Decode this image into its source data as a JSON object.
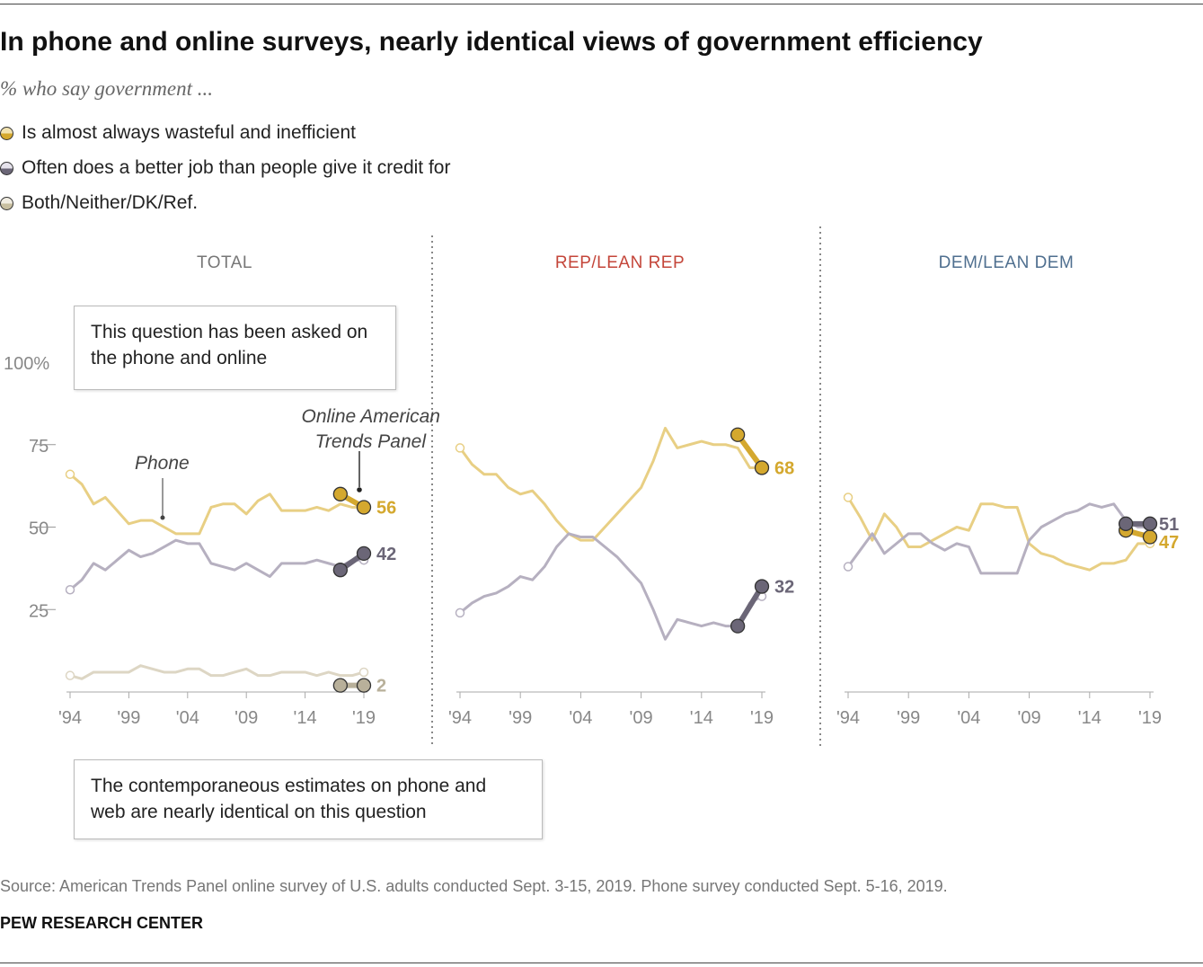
{
  "title": "In phone and online surveys, nearly identical views of government efficiency",
  "subtitle": "% who say government ...",
  "legend": [
    {
      "label": "Is almost always wasteful and inefficient",
      "color": "#d4a82e"
    },
    {
      "label": "Often does a better job than people give it credit for",
      "color": "#6b6677"
    },
    {
      "label": "Both/Neither/DK/Ref.",
      "color": "#c8bfa0"
    }
  ],
  "notes": {
    "top": "This question has been asked on the phone and online",
    "bottom": "The contemporaneous estimates on phone and web are nearly identical on this question"
  },
  "annotations": {
    "phone": "Phone",
    "online_line1": "Online American",
    "online_line2": "Trends Panel"
  },
  "source": "Source: American Trends Panel online survey of U.S. adults conducted Sept. 3-15, 2019. Phone survey conducted Sept. 5-16, 2019.",
  "brand": "PEW RESEARCH CENTER",
  "colors": {
    "wasteful_phone": "#e8cf84",
    "wasteful_online": "#d4a82e",
    "better_phone": "#b6b0c0",
    "better_online": "#6b6677",
    "both_phone": "#ddd6c4",
    "both_online": "#b8b09a",
    "rep": "#c4463a",
    "dem": "#4f6f8f",
    "total": "#777777"
  },
  "chart_data": [
    {
      "type": "line",
      "panel": "TOTAL",
      "ylim": [
        0,
        100
      ],
      "yticks": [
        "100%",
        "75",
        "50",
        "25"
      ],
      "xticks": [
        "'94",
        "'99",
        "'04",
        "'09",
        "'14",
        "'19"
      ],
      "xlim": [
        1994,
        2019
      ],
      "phone_series": [
        {
          "name": "Is almost always wasteful and inefficient",
          "key": "wasteful",
          "x": [
            1994,
            1995,
            1996,
            1997,
            1998,
            1999,
            2000,
            2001,
            2002,
            2003,
            2004,
            2005,
            2006,
            2007,
            2008,
            2009,
            2010,
            2011,
            2012,
            2013,
            2014,
            2015,
            2016,
            2017,
            2018,
            2019
          ],
          "y": [
            66,
            63,
            57,
            59,
            55,
            51,
            52,
            52,
            50,
            48,
            48,
            48,
            56,
            57,
            57,
            54,
            58,
            60,
            55,
            55,
            55,
            56,
            55,
            57,
            56,
            56
          ]
        },
        {
          "name": "Often does a better job than people give it credit for",
          "key": "better",
          "x": [
            1994,
            1995,
            1996,
            1997,
            1998,
            1999,
            2000,
            2001,
            2002,
            2003,
            2004,
            2005,
            2006,
            2007,
            2008,
            2009,
            2010,
            2011,
            2012,
            2013,
            2014,
            2015,
            2016,
            2017,
            2018,
            2019
          ],
          "y": [
            31,
            34,
            39,
            37,
            40,
            43,
            41,
            42,
            44,
            46,
            45,
            45,
            39,
            38,
            37,
            39,
            37,
            35,
            39,
            39,
            39,
            40,
            39,
            38,
            40,
            40
          ]
        },
        {
          "name": "Both/Neither/DK/Ref.",
          "key": "both",
          "x": [
            1994,
            1995,
            1996,
            1997,
            1998,
            1999,
            2000,
            2001,
            2002,
            2003,
            2004,
            2005,
            2006,
            2007,
            2008,
            2009,
            2010,
            2011,
            2012,
            2013,
            2014,
            2015,
            2016,
            2017,
            2018,
            2019
          ],
          "y": [
            5,
            4,
            6,
            6,
            6,
            6,
            8,
            7,
            6,
            6,
            7,
            7,
            5,
            5,
            6,
            7,
            5,
            5,
            6,
            6,
            6,
            5,
            6,
            5,
            5,
            6
          ]
        }
      ],
      "online_series": [
        {
          "key": "wasteful",
          "x": [
            2017,
            2019
          ],
          "y": [
            60,
            56
          ],
          "label": "56"
        },
        {
          "key": "better",
          "x": [
            2017,
            2019
          ],
          "y": [
            37,
            42
          ],
          "label": "42"
        },
        {
          "key": "both",
          "x": [
            2017,
            2019
          ],
          "y": [
            2,
            2
          ],
          "label": "2"
        }
      ]
    },
    {
      "type": "line",
      "panel": "REP/LEAN REP",
      "ylim": [
        0,
        100
      ],
      "xticks": [
        "'94",
        "'99",
        "'04",
        "'09",
        "'14",
        "'19"
      ],
      "xlim": [
        1994,
        2019
      ],
      "phone_series": [
        {
          "name": "Is almost always wasteful and inefficient",
          "key": "wasteful",
          "x": [
            1994,
            1995,
            1996,
            1997,
            1998,
            1999,
            2000,
            2001,
            2002,
            2003,
            2004,
            2005,
            2006,
            2007,
            2008,
            2009,
            2010,
            2011,
            2012,
            2013,
            2014,
            2015,
            2016,
            2017,
            2018,
            2019
          ],
          "y": [
            74,
            69,
            66,
            66,
            62,
            60,
            61,
            57,
            52,
            48,
            46,
            46,
            50,
            54,
            58,
            62,
            70,
            80,
            74,
            75,
            76,
            75,
            75,
            74,
            68,
            68
          ]
        },
        {
          "name": "Often does a better job than people give it credit for",
          "key": "better",
          "x": [
            1994,
            1995,
            1996,
            1997,
            1998,
            1999,
            2000,
            2001,
            2002,
            2003,
            2004,
            2005,
            2006,
            2007,
            2008,
            2009,
            2010,
            2011,
            2012,
            2013,
            2014,
            2015,
            2016,
            2017,
            2018,
            2019
          ],
          "y": [
            24,
            27,
            29,
            30,
            32,
            35,
            34,
            38,
            44,
            48,
            47,
            47,
            44,
            41,
            37,
            33,
            25,
            16,
            22,
            21,
            20,
            21,
            20,
            20,
            27,
            29
          ]
        }
      ],
      "online_series": [
        {
          "key": "wasteful",
          "x": [
            2017,
            2019
          ],
          "y": [
            78,
            68
          ],
          "label": "68"
        },
        {
          "key": "better",
          "x": [
            2017,
            2019
          ],
          "y": [
            20,
            32
          ],
          "label": "32"
        }
      ]
    },
    {
      "type": "line",
      "panel": "DEM/LEAN DEM",
      "ylim": [
        0,
        100
      ],
      "xticks": [
        "'94",
        "'99",
        "'04",
        "'09",
        "'14",
        "'19"
      ],
      "xlim": [
        1994,
        2019
      ],
      "phone_series": [
        {
          "name": "Is almost always wasteful and inefficient",
          "key": "wasteful",
          "x": [
            1994,
            1995,
            1996,
            1997,
            1998,
            1999,
            2000,
            2001,
            2002,
            2003,
            2004,
            2005,
            2006,
            2007,
            2008,
            2009,
            2010,
            2011,
            2012,
            2013,
            2014,
            2015,
            2016,
            2017,
            2018,
            2019
          ],
          "y": [
            59,
            53,
            46,
            54,
            50,
            44,
            44,
            46,
            48,
            50,
            49,
            57,
            57,
            56,
            56,
            45,
            42,
            41,
            39,
            38,
            37,
            39,
            39,
            40,
            45,
            45
          ]
        },
        {
          "name": "Often does a better job than people give it credit for",
          "key": "better",
          "x": [
            1994,
            1995,
            1996,
            1997,
            1998,
            1999,
            2000,
            2001,
            2002,
            2003,
            2004,
            2005,
            2006,
            2007,
            2008,
            2009,
            2010,
            2011,
            2012,
            2013,
            2014,
            2015,
            2016,
            2017,
            2018,
            2019
          ],
          "y": [
            38,
            43,
            48,
            42,
            45,
            48,
            48,
            45,
            43,
            45,
            44,
            36,
            36,
            36,
            36,
            46,
            50,
            52,
            54,
            55,
            57,
            56,
            57,
            52,
            50,
            50
          ]
        }
      ],
      "online_series": [
        {
          "key": "wasteful",
          "x": [
            2017,
            2019
          ],
          "y": [
            49,
            47
          ],
          "label": "47"
        },
        {
          "key": "better",
          "x": [
            2017,
            2019
          ],
          "y": [
            51,
            51
          ],
          "label": "51"
        }
      ]
    }
  ]
}
